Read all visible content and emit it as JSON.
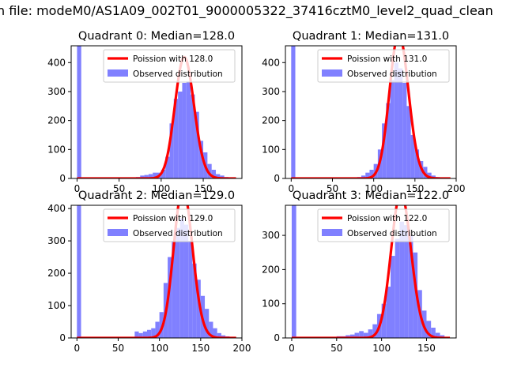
{
  "figure": {
    "suptitle": "n file: modeM0/AS1A09_002T01_9000005322_37416cztM0_level2_quad_clean"
  },
  "colors": {
    "poisson": "#ff0000",
    "observed": "#8080ff",
    "axis": "#000000"
  },
  "chart_data": [
    {
      "type": "bar",
      "title": "Quadrant 0: Median=128.0",
      "legend": [
        "Poission with 128.0",
        "Observed distribution"
      ],
      "legend_placement": "upper-right",
      "xlim": [
        -7,
        196
      ],
      "ylim": [
        0,
        458
      ],
      "xticks": [
        0,
        50,
        100,
        150
      ],
      "yticks": [
        0,
        100,
        200,
        300,
        400
      ],
      "poisson_mean": 128.0,
      "hist_bins": {
        "x": [
          0,
          70,
          75,
          80,
          85,
          90,
          95,
          100,
          105,
          110,
          115,
          120,
          125,
          130,
          135,
          140,
          145,
          150,
          155,
          160,
          165,
          170,
          175,
          180
        ],
        "counts": [
          458,
          5,
          10,
          12,
          15,
          20,
          20,
          30,
          75,
          190,
          275,
          300,
          330,
          335,
          290,
          230,
          130,
          90,
          50,
          30,
          15,
          10,
          5,
          3
        ]
      }
    },
    {
      "type": "bar",
      "title": "Quadrant 1: Median=131.0",
      "legend": [
        "Poission with 131.0",
        "Observed distribution"
      ],
      "legend_placement": "upper-right",
      "xlim": [
        -7,
        200
      ],
      "ylim": [
        0,
        458
      ],
      "xticks": [
        0,
        50,
        100,
        150,
        200
      ],
      "yticks": [
        0,
        100,
        200,
        300,
        400
      ],
      "poisson_mean": 131.0,
      "hist_bins": {
        "x": [
          0,
          80,
          85,
          90,
          95,
          100,
          105,
          110,
          115,
          120,
          125,
          130,
          135,
          140,
          145,
          150,
          155,
          160,
          165,
          170,
          175,
          180
        ],
        "counts": [
          458,
          5,
          10,
          20,
          30,
          50,
          100,
          190,
          260,
          340,
          400,
          380,
          330,
          250,
          150,
          100,
          60,
          40,
          20,
          10,
          5,
          3
        ]
      }
    },
    {
      "type": "bar",
      "title": "Quadrant 2: Median=129.0",
      "legend": [
        "Poission with 129.0",
        "Observed distribution"
      ],
      "legend_placement": "upper-right",
      "xlim": [
        -7,
        200
      ],
      "ylim": [
        0,
        410
      ],
      "xticks": [
        0,
        50,
        100,
        150,
        200
      ],
      "yticks": [
        0,
        100,
        200,
        300,
        400
      ],
      "poisson_mean": 129.0,
      "hist_bins": {
        "x": [
          0,
          70,
          75,
          80,
          85,
          90,
          95,
          100,
          105,
          110,
          115,
          120,
          125,
          130,
          135,
          140,
          145,
          150,
          155,
          160,
          165,
          170,
          175,
          180,
          185
        ],
        "counts": [
          410,
          20,
          15,
          20,
          25,
          30,
          50,
          80,
          170,
          250,
          300,
          340,
          370,
          350,
          300,
          230,
          180,
          130,
          90,
          50,
          30,
          15,
          8,
          5,
          2
        ]
      }
    },
    {
      "type": "bar",
      "title": "Quadrant 3: Median=122.0",
      "legend": [
        "Poission with 122.0",
        "Observed distribution"
      ],
      "legend_placement": "upper-right",
      "xlim": [
        -7,
        183
      ],
      "ylim": [
        0,
        388
      ],
      "xticks": [
        0,
        50,
        100,
        150
      ],
      "yticks": [
        0,
        100,
        200,
        300
      ],
      "poisson_mean": 122.0,
      "hist_bins": {
        "x": [
          0,
          50,
          55,
          60,
          65,
          70,
          75,
          80,
          85,
          90,
          95,
          100,
          105,
          110,
          115,
          120,
          125,
          130,
          135,
          140,
          145,
          150,
          155,
          160,
          165
        ],
        "counts": [
          388,
          5,
          5,
          8,
          10,
          15,
          20,
          15,
          25,
          40,
          70,
          100,
          150,
          240,
          290,
          340,
          330,
          300,
          250,
          140,
          80,
          50,
          30,
          15,
          8
        ]
      }
    }
  ]
}
